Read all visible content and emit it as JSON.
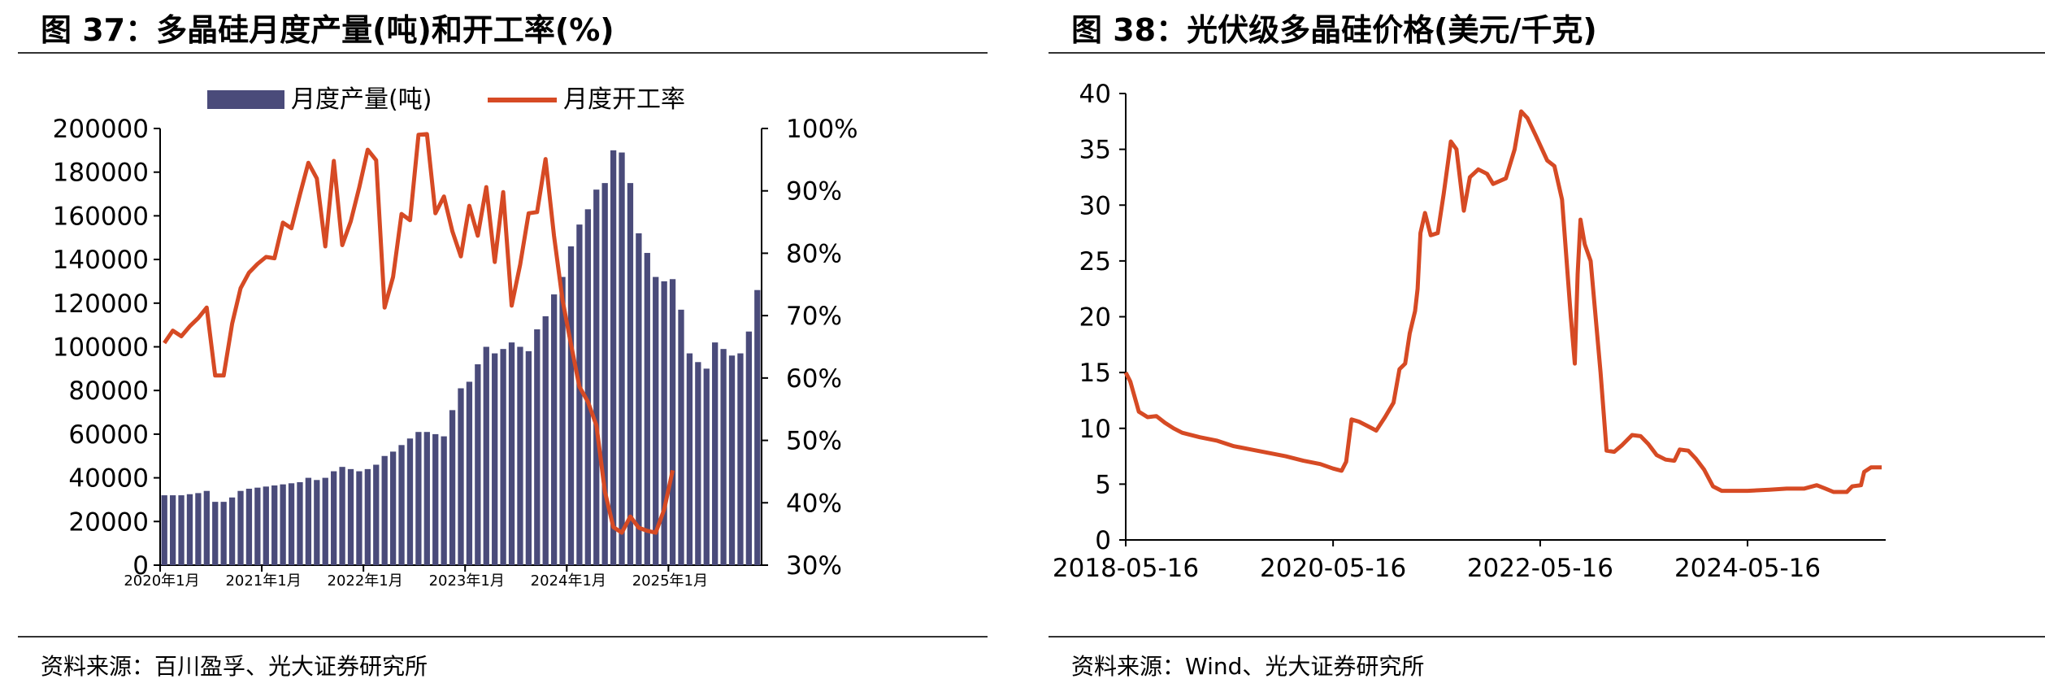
{
  "left": {
    "title": "图 37：多晶硅月度产量(吨)和开工率(%)",
    "source": "资料来源：百川盈孚、光大证券研究所"
  },
  "right": {
    "title": "图 38：光伏级多晶硅价格(美元/千克)",
    "source": "资料来源：Wind、光大证券研究所"
  },
  "chart_data": [
    {
      "type": "bar+line",
      "title": "",
      "legend": "top",
      "x_tick_labels": [
        "2020年1月",
        "2021年1月",
        "2022年1月",
        "2023年1月",
        "2024年1月",
        "2025年1月"
      ],
      "y_left_ticks": [
        "0",
        "20000",
        "40000",
        "60000",
        "80000",
        "100000",
        "120000",
        "140000",
        "160000",
        "180000",
        "200000"
      ],
      "y_right_ticks": [
        "30%",
        "40%",
        "50%",
        "60%",
        "70%",
        "80%",
        "90%",
        "100%"
      ],
      "y_left_range": [
        0,
        200000
      ],
      "y_right_range": [
        30,
        100
      ],
      "categories_start": "2020-01",
      "series": [
        {
          "name": "月度产量(吨)",
          "kind": "bar",
          "axis": "left",
          "color": "#4a4b7a",
          "values": [
            32000,
            32000,
            32000,
            32500,
            33000,
            34000,
            29000,
            29000,
            31000,
            34000,
            35000,
            35500,
            36000,
            36500,
            37000,
            37500,
            38000,
            40000,
            39000,
            40000,
            43000,
            45000,
            44000,
            43000,
            44000,
            46000,
            50000,
            52000,
            55000,
            58000,
            61000,
            61000,
            60000,
            59000,
            71000,
            81000,
            84000,
            92000,
            100000,
            97000,
            99000,
            102000,
            100000,
            98000,
            108000,
            114000,
            124000,
            132000,
            146000,
            156000,
            163000,
            172000,
            175000,
            190000,
            189000,
            175000,
            152000,
            143000,
            132000,
            130000,
            131000,
            117000,
            97000,
            93000,
            90000,
            102000,
            99000,
            96000,
            97000,
            107000,
            126000
          ]
        },
        {
          "name": "月度开工率",
          "kind": "line",
          "axis": "right",
          "color": "#d64a24",
          "values": [
            65.6,
            67.6,
            66.7,
            68.3,
            69.6,
            71.3,
            60.4,
            60.4,
            68.7,
            74.4,
            76.9,
            78.3,
            79.4,
            79.2,
            84.9,
            84.0,
            89.4,
            94.5,
            92.0,
            81.1,
            94.8,
            81.3,
            85.1,
            90.5,
            96.6,
            94.9,
            71.3,
            76.2,
            86.3,
            85.3,
            99.0,
            99.1,
            86.4,
            89.1,
            83.5,
            79.5,
            87.6,
            82.8,
            90.6,
            78.6,
            89.8,
            71.6,
            78.2,
            86.4,
            86.6,
            95.1,
            82.8,
            72.5,
            65.4,
            58.6,
            56.2,
            52.4,
            41.8,
            36.1,
            35.2,
            37.8,
            36.0,
            35.5,
            35.2,
            38.9,
            45.2
          ]
        }
      ]
    },
    {
      "type": "line",
      "title": "",
      "x_tick_labels": [
        "2018-05-16",
        "2020-05-16",
        "2022-05-16",
        "2024-05-16"
      ],
      "y_ticks": [
        "0",
        "5",
        "10",
        "15",
        "20",
        "25",
        "30",
        "35",
        "40"
      ],
      "y_range": [
        0,
        40
      ],
      "x_range": [
        "2018-05-16",
        "2025-09-01"
      ],
      "series": [
        {
          "name": "",
          "color": "#d64a24",
          "points": [
            [
              "2018-05-16",
              15.0
            ],
            [
              "2018-06-01",
              14.2
            ],
            [
              "2018-07-01",
              11.5
            ],
            [
              "2018-08-01",
              11.0
            ],
            [
              "2018-09-01",
              11.1
            ],
            [
              "2018-10-01",
              10.5
            ],
            [
              "2018-11-01",
              10.0
            ],
            [
              "2018-12-01",
              9.6
            ],
            [
              "2019-02-01",
              9.2
            ],
            [
              "2019-04-01",
              8.9
            ],
            [
              "2019-06-01",
              8.4
            ],
            [
              "2019-08-01",
              8.1
            ],
            [
              "2019-10-01",
              7.8
            ],
            [
              "2019-12-01",
              7.5
            ],
            [
              "2020-02-01",
              7.1
            ],
            [
              "2020-04-01",
              6.8
            ],
            [
              "2020-05-16",
              6.4
            ],
            [
              "2020-06-15",
              6.2
            ],
            [
              "2020-07-01",
              7.0
            ],
            [
              "2020-07-20",
              10.8
            ],
            [
              "2020-08-15",
              10.6
            ],
            [
              "2020-09-15",
              10.2
            ],
            [
              "2020-10-15",
              9.8
            ],
            [
              "2020-11-15",
              11.0
            ],
            [
              "2020-12-15",
              12.3
            ],
            [
              "2021-01-05",
              15.3
            ],
            [
              "2021-01-25",
              15.8
            ],
            [
              "2021-02-10",
              18.5
            ],
            [
              "2021-03-01",
              20.5
            ],
            [
              "2021-03-10",
              22.5
            ],
            [
              "2021-03-20",
              27.5
            ],
            [
              "2021-04-05",
              29.3
            ],
            [
              "2021-04-25",
              27.3
            ],
            [
              "2021-05-20",
              27.5
            ],
            [
              "2021-06-10",
              31.0
            ],
            [
              "2021-07-05",
              35.7
            ],
            [
              "2021-07-25",
              35.0
            ],
            [
              "2021-08-20",
              29.5
            ],
            [
              "2021-09-10",
              32.5
            ],
            [
              "2021-10-10",
              33.2
            ],
            [
              "2021-11-10",
              32.8
            ],
            [
              "2021-12-01",
              31.9
            ],
            [
              "2022-01-15",
              32.4
            ],
            [
              "2022-02-15",
              35.0
            ],
            [
              "2022-03-10",
              38.4
            ],
            [
              "2022-04-01",
              37.8
            ],
            [
              "2022-05-01",
              36.2
            ],
            [
              "2022-06-10",
              34.0
            ],
            [
              "2022-07-05",
              33.5
            ],
            [
              "2022-08-01",
              30.5
            ],
            [
              "2022-09-01",
              20.0
            ],
            [
              "2022-09-15",
              15.8
            ],
            [
              "2022-09-25",
              23.8
            ],
            [
              "2022-10-05",
              28.7
            ],
            [
              "2022-10-20",
              26.5
            ],
            [
              "2022-11-10",
              25.0
            ],
            [
              "2022-12-15",
              15.0
            ],
            [
              "2023-01-05",
              8.0
            ],
            [
              "2023-02-01",
              7.9
            ],
            [
              "2023-03-01",
              8.5
            ],
            [
              "2023-04-05",
              9.4
            ],
            [
              "2023-05-05",
              9.3
            ],
            [
              "2023-06-01",
              8.6
            ],
            [
              "2023-07-01",
              7.6
            ],
            [
              "2023-08-01",
              7.2
            ],
            [
              "2023-09-01",
              7.1
            ],
            [
              "2023-09-20",
              8.1
            ],
            [
              "2023-10-20",
              8.0
            ],
            [
              "2023-11-15",
              7.3
            ],
            [
              "2023-12-15",
              6.3
            ],
            [
              "2024-01-15",
              4.8
            ],
            [
              "2024-02-15",
              4.4
            ],
            [
              "2024-05-16",
              4.4
            ],
            [
              "2024-08-01",
              4.5
            ],
            [
              "2024-10-01",
              4.6
            ],
            [
              "2024-12-01",
              4.6
            ],
            [
              "2025-01-15",
              4.9
            ],
            [
              "2025-02-15",
              4.6
            ],
            [
              "2025-03-15",
              4.3
            ],
            [
              "2025-05-01",
              4.3
            ],
            [
              "2025-05-20",
              4.8
            ],
            [
              "2025-06-20",
              4.9
            ],
            [
              "2025-07-01",
              6.1
            ],
            [
              "2025-07-25",
              6.5
            ],
            [
              "2025-09-01",
              6.5
            ]
          ]
        }
      ]
    }
  ]
}
